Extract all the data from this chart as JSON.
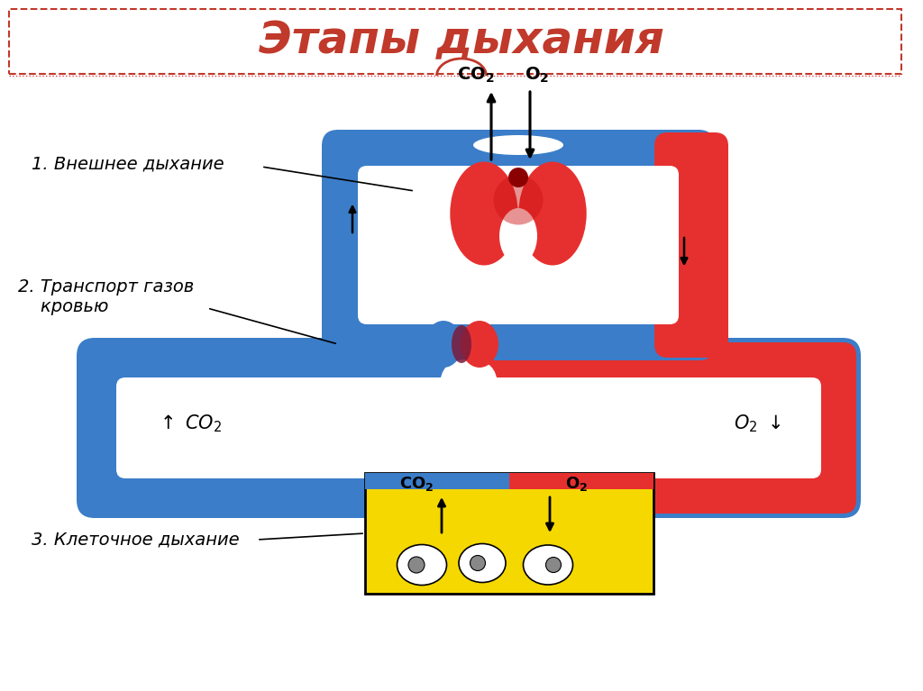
{
  "title": "Этапы дыхания",
  "title_color": "#c0392b",
  "title_fontsize": 36,
  "bg_color": "#ffffff",
  "red_color": "#e63030",
  "blue_color": "#3b7dc8",
  "dark_red": "#c0392b",
  "yellow_color": "#f5d800",
  "label1": "1. Внешнее дыхание",
  "label2": "2. Транспорт газов\n    кровью",
  "label3": "3. Клеточное дыхание",
  "co2_label": "CO₂",
  "o2_label": "O₂",
  "text_fontsize": 16,
  "label_fontsize": 14
}
